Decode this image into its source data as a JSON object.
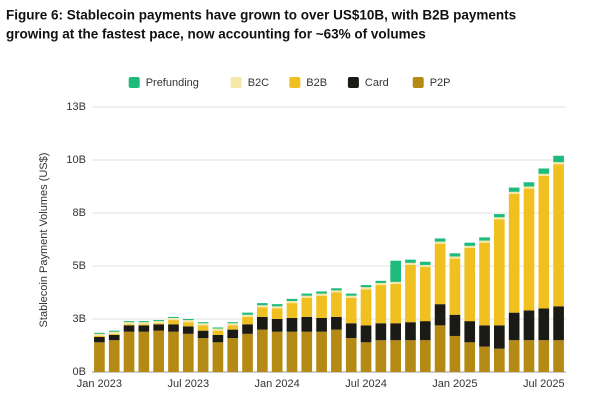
{
  "chart_data": {
    "type": "stacked_bar",
    "title": [
      "Figure 6: Stablecoin payments have grown to over US$10B, with B2B payments",
      "growing at the fastest pace, now accounting for ~63% of volumes"
    ],
    "y_label": "Stablecoin Payment Volumes (US$)",
    "categories": [
      "Jan 2023",
      null,
      null,
      null,
      null,
      null,
      "Jul 2023",
      null,
      null,
      null,
      null,
      null,
      "Jan 2024",
      null,
      null,
      null,
      null,
      null,
      "Jul 2024",
      null,
      null,
      null,
      null,
      null,
      "Jan 2025",
      null,
      null,
      null,
      null,
      null,
      "Jul 2025",
      null
    ],
    "ylim": [
      0,
      12.5
    ],
    "yticks": [
      {
        "value": 0,
        "label": "0B"
      },
      {
        "value": 2.5,
        "label": "3B"
      },
      {
        "value": 5,
        "label": "5B"
      },
      {
        "value": 7.5,
        "label": "8B"
      },
      {
        "value": 10,
        "label": "10B"
      },
      {
        "value": 12.5,
        "label": "13B"
      }
    ],
    "grid": true,
    "legend": "top",
    "series": [
      {
        "name": "P2P",
        "color": "#b58a14",
        "values": [
          1.4,
          1.5,
          1.9,
          1.9,
          1.95,
          1.9,
          1.8,
          1.6,
          1.4,
          1.6,
          1.8,
          2.0,
          1.9,
          1.9,
          1.9,
          1.9,
          2.0,
          1.6,
          1.4,
          1.5,
          1.5,
          1.5,
          1.5,
          2.2,
          1.7,
          1.4,
          1.2,
          1.1,
          1.5,
          1.5,
          1.5,
          1.5
        ]
      },
      {
        "name": "Card",
        "color": "#1c1a14",
        "values": [
          0.25,
          0.25,
          0.3,
          0.3,
          0.3,
          0.35,
          0.35,
          0.35,
          0.35,
          0.4,
          0.45,
          0.6,
          0.6,
          0.65,
          0.7,
          0.65,
          0.6,
          0.7,
          0.8,
          0.8,
          0.8,
          0.85,
          0.9,
          1.0,
          1.0,
          1.0,
          1.0,
          1.1,
          1.3,
          1.4,
          1.5,
          1.6
        ]
      },
      {
        "name": "B2B",
        "color": "#f0c020",
        "values": [
          0.05,
          0.05,
          0.05,
          0.05,
          0.05,
          0.2,
          0.2,
          0.25,
          0.2,
          0.2,
          0.35,
          0.45,
          0.5,
          0.7,
          0.9,
          1.05,
          1.15,
          1.2,
          1.7,
          1.8,
          1.85,
          2.7,
          2.55,
          2.85,
          2.65,
          3.45,
          3.9,
          5.0,
          5.6,
          5.75,
          6.25,
          6.7
        ]
      },
      {
        "name": "B2C",
        "color": "#f6e7a6",
        "values": [
          0.1,
          0.1,
          0.1,
          0.1,
          0.1,
          0.1,
          0.1,
          0.1,
          0.1,
          0.1,
          0.1,
          0.1,
          0.1,
          0.1,
          0.1,
          0.1,
          0.1,
          0.1,
          0.1,
          0.1,
          0.1,
          0.1,
          0.1,
          0.1,
          0.1,
          0.1,
          0.1,
          0.1,
          0.1,
          0.1,
          0.1,
          0.1
        ]
      },
      {
        "name": "Prefunding",
        "color": "#1dbb7c",
        "values": [
          0.05,
          0.05,
          0.05,
          0.05,
          0.05,
          0.05,
          0.05,
          0.05,
          0.05,
          0.05,
          0.1,
          0.1,
          0.1,
          0.1,
          0.1,
          0.1,
          0.1,
          0.1,
          0.1,
          0.1,
          1.0,
          0.15,
          0.15,
          0.15,
          0.15,
          0.15,
          0.15,
          0.15,
          0.2,
          0.2,
          0.25,
          0.3
        ]
      }
    ]
  }
}
